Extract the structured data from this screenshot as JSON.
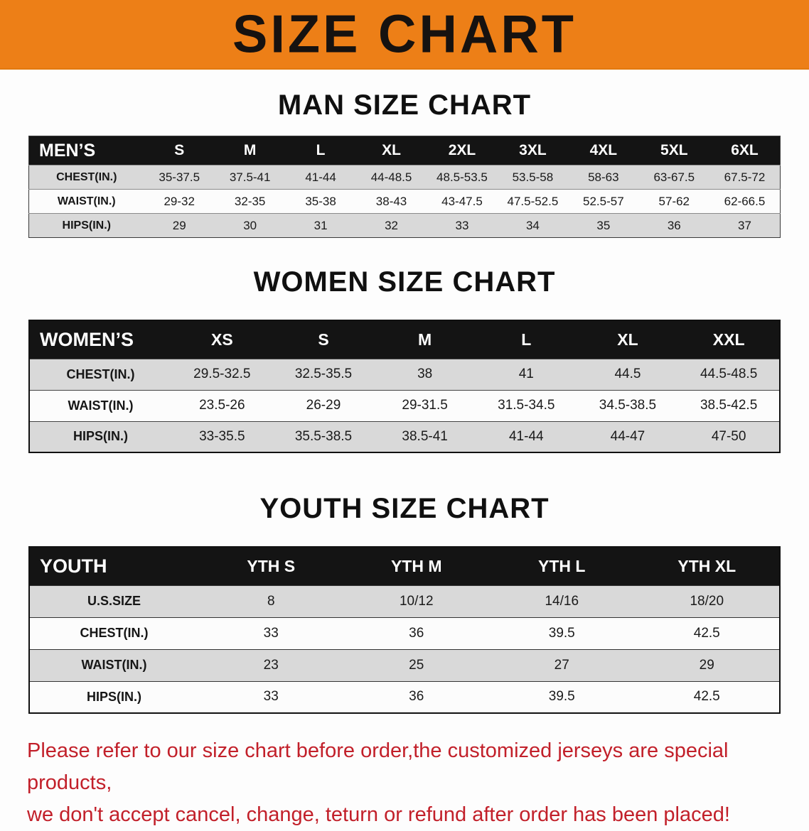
{
  "banner": {
    "title": "SIZE CHART",
    "bg_color": "#ED7F17",
    "text_color": "#161210"
  },
  "sections": [
    {
      "id": "men",
      "heading": "MAN SIZE CHART",
      "table": {
        "header": [
          "MEN’S",
          "S",
          "M",
          "L",
          "XL",
          "2XL",
          "3XL",
          "4XL",
          "5XL",
          "6XL"
        ],
        "rows": [
          [
            "CHEST(IN.)",
            "35-37.5",
            "37.5-41",
            "41-44",
            "44-48.5",
            "48.5-53.5",
            "53.5-58",
            "58-63",
            "63-67.5",
            "67.5-72"
          ],
          [
            "WAIST(IN.)",
            "29-32",
            "32-35",
            "35-38",
            "38-43",
            "43-47.5",
            "47.5-52.5",
            "52.5-57",
            "57-62",
            "62-66.5"
          ],
          [
            "HIPS(IN.)",
            "29",
            "30",
            "31",
            "32",
            "33",
            "34",
            "35",
            "36",
            "37"
          ]
        ]
      }
    },
    {
      "id": "women",
      "heading": "WOMEN SIZE CHART",
      "table": {
        "header": [
          "WOMEN’S",
          "XS",
          "S",
          "M",
          "L",
          "XL",
          "XXL"
        ],
        "rows": [
          [
            "CHEST(IN.)",
            "29.5-32.5",
            "32.5-35.5",
            "38",
            "41",
            "44.5",
            "44.5-48.5"
          ],
          [
            "WAIST(IN.)",
            "23.5-26",
            "26-29",
            "29-31.5",
            "31.5-34.5",
            "34.5-38.5",
            "38.5-42.5"
          ],
          [
            "HIPS(IN.)",
            "33-35.5",
            "35.5-38.5",
            "38.5-41",
            "41-44",
            "44-47",
            "47-50"
          ]
        ]
      }
    },
    {
      "id": "youth",
      "heading": "YOUTH SIZE CHART",
      "table": {
        "header": [
          "YOUTH",
          "YTH S",
          "YTH M",
          "YTH L",
          "YTH XL"
        ],
        "rows": [
          [
            "U.S.SIZE",
            "8",
            "10/12",
            "14/16",
            "18/20"
          ],
          [
            "CHEST(IN.)",
            "33",
            "36",
            "39.5",
            "42.5"
          ],
          [
            "WAIST(IN.)",
            "23",
            "25",
            "27",
            "29"
          ],
          [
            "HIPS(IN.)",
            "33",
            "36",
            "39.5",
            "42.5"
          ]
        ]
      }
    }
  ],
  "disclaimer": {
    "lines": [
      "Please refer to our size chart before order,the customized jerseys are special products,",
      "we don't accept cancel, change, teturn or refund after order has been placed!"
    ],
    "color": "#C2202A"
  }
}
